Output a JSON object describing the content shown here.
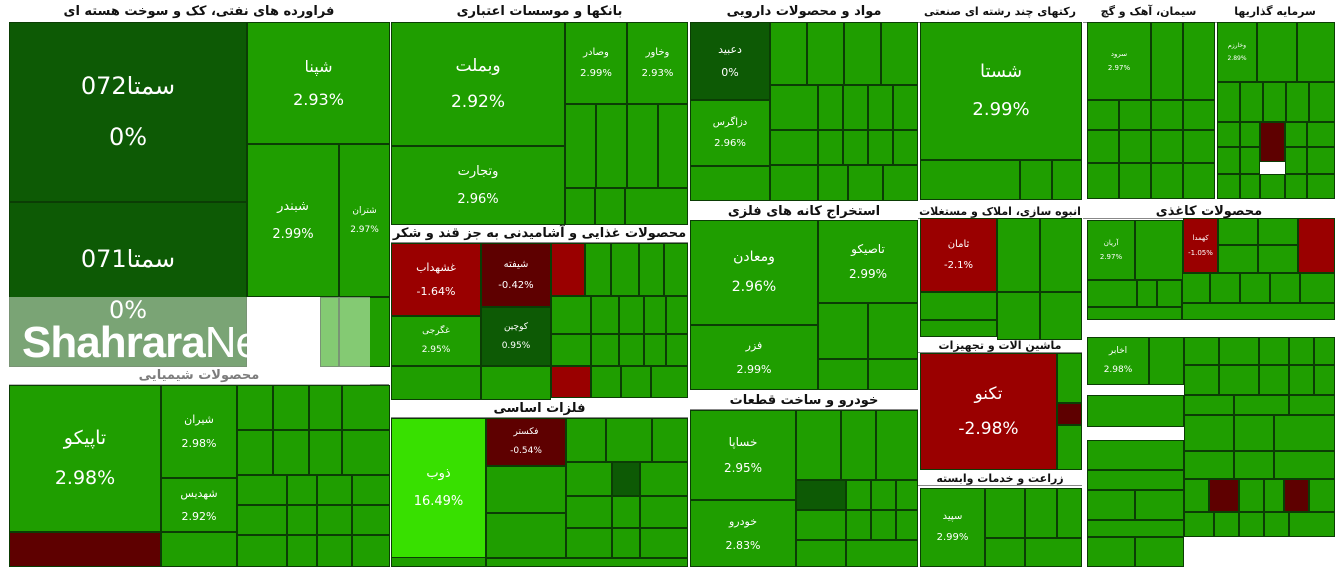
{
  "colors": {
    "bright": "#1f9e00",
    "mid": "#198c00",
    "dark": "#0d5a05",
    "darker": "#0a4a04",
    "lime": "#38e000",
    "red": "#9a0000",
    "darkred": "#5e0000"
  },
  "sectors": [
    {
      "title": "فراورده های نفتی، کک و سوخت هسته ای"
    },
    {
      "title": "بانکها و موسسات اعتباری"
    },
    {
      "title": "مواد و محصولات دارویی"
    },
    {
      "title": "رکتهای چند رشته ای صنعتی"
    },
    {
      "title": "سیمان، آهک و گچ"
    },
    {
      "title": "سرمایه گذاریها"
    },
    {
      "title": "محصولات غذایی و آشامیدنی به جز قند و شکر"
    },
    {
      "title": "استخراج کانه های فلزی"
    },
    {
      "title": "انبوه سازی، املاک و مستغلات"
    },
    {
      "title": "محصولات کاغذی"
    },
    {
      "title": "ماشین آلات و تجهیزات"
    },
    {
      "title": "محصولات شیمیایی"
    },
    {
      "title": "فلزات اساسی"
    },
    {
      "title": "خودرو و ساخت قطعات"
    },
    {
      "title": "زراعت و خدمات وابسته"
    }
  ],
  "tiles": [
    {
      "name": "سمتا072",
      "pct": "0%"
    },
    {
      "name": "سمتا071",
      "pct": "0%"
    },
    {
      "name": "شپنا",
      "pct": "2.93%"
    },
    {
      "name": "شبندر",
      "pct": "2.99%"
    },
    {
      "name": "شتران",
      "pct": "2.97%"
    },
    {
      "name": "وبملت",
      "pct": "2.92%"
    },
    {
      "name": "وتجارت",
      "pct": "2.96%"
    },
    {
      "name": "وصادر",
      "pct": "2.99%"
    },
    {
      "name": "وخاور",
      "pct": "2.93%"
    },
    {
      "name": "دعبید",
      "pct": "0%"
    },
    {
      "name": "دزاگرس",
      "pct": "2.96%"
    },
    {
      "name": "شستا",
      "pct": "2.99%"
    },
    {
      "name": "غشهداب",
      "pct": "-1.64%"
    },
    {
      "name": "شیفته",
      "pct": "-0.42%"
    },
    {
      "name": "غگرجی",
      "pct": "2.95%"
    },
    {
      "name": "کوچین",
      "pct": "0.95%"
    },
    {
      "name": "ومعادن",
      "pct": "2.96%"
    },
    {
      "name": "تاصیکو",
      "pct": "2.99%"
    },
    {
      "name": "فزر",
      "pct": "2.99%"
    },
    {
      "name": "ثامان",
      "pct": "-2.1%"
    },
    {
      "name": "تکنو",
      "pct": "-2.98%"
    },
    {
      "name": "تاپیکو",
      "pct": "2.98%"
    },
    {
      "name": "شیران",
      "pct": "2.98%"
    },
    {
      "name": "شهدیس",
      "pct": "2.92%"
    },
    {
      "name": "ذوب",
      "pct": "16.49%"
    },
    {
      "name": "فکستر",
      "pct": "-0.54%"
    },
    {
      "name": "خساپا",
      "pct": "2.95%"
    },
    {
      "name": "خودرو",
      "pct": "2.83%"
    },
    {
      "name": "سپید",
      "pct": "2.99%"
    },
    {
      "name": "کهمدا",
      "pct": "-1.05%"
    },
    {
      "name": "اخابر",
      "pct": "2.98%"
    },
    {
      "name": "آریان",
      "pct": "2.97%"
    },
    {
      "name": "سرود",
      "pct": "2.97%"
    },
    {
      "name": "وخارزم",
      "pct": "2.89%"
    }
  ],
  "watermark": {
    "left": "Shahrara",
    "right": "News"
  }
}
